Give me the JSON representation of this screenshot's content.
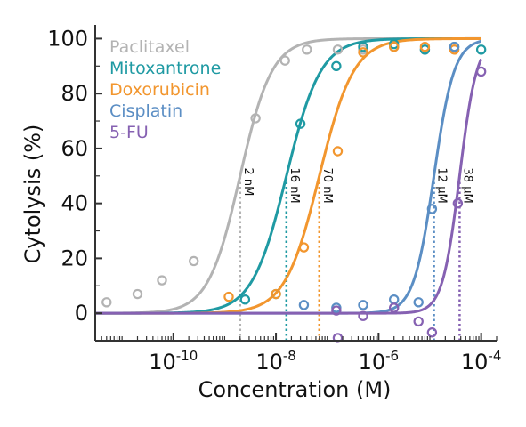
{
  "chart_data": {
    "type": "scatter",
    "title": "",
    "xlabel": "Concentration (M)",
    "ylabel": "Cytolysis (%)",
    "xscale": "log",
    "xlim": [
      3e-12,
      0.0002
    ],
    "ylim": [
      -10,
      105
    ],
    "x_ticks": [
      {
        "value": 1e-10,
        "base": "10",
        "exp": "-10"
      },
      {
        "value": 1e-08,
        "base": "10",
        "exp": "-8"
      },
      {
        "value": 1e-06,
        "base": "10",
        "exp": "-6"
      },
      {
        "value": 0.0001,
        "base": "10",
        "exp": "-4"
      }
    ],
    "y_ticks": [
      0,
      20,
      40,
      60,
      80,
      100
    ],
    "legend_position": "top-left",
    "series": [
      {
        "name": "Paclitaxel",
        "color": "#b3b3b3",
        "ic50": 2e-09,
        "ic50_label": "2 nM",
        "hill": 1.4,
        "top": 100,
        "points": [
          {
            "x": 5e-12,
            "y": 4
          },
          {
            "x": 2e-11,
            "y": 7
          },
          {
            "x": 6e-11,
            "y": 12
          },
          {
            "x": 2.5e-10,
            "y": 19
          },
          {
            "x": 4e-09,
            "y": 71
          },
          {
            "x": 1.5e-08,
            "y": 92
          },
          {
            "x": 4e-08,
            "y": 96
          },
          {
            "x": 1.6e-07,
            "y": 96
          },
          {
            "x": 5e-07,
            "y": 96
          },
          {
            "x": 2e-06,
            "y": 97
          },
          {
            "x": 8e-06,
            "y": 96
          },
          {
            "x": 3e-05,
            "y": 96
          }
        ]
      },
      {
        "name": "Mitoxantrone",
        "color": "#1f9aa3",
        "ic50": 1.6e-08,
        "ic50_label": "16 nM",
        "hill": 1.3,
        "top": 100,
        "points": [
          {
            "x": 2.5e-09,
            "y": 5
          },
          {
            "x": 1e-08,
            "y": 7
          },
          {
            "x": 3e-08,
            "y": 69
          },
          {
            "x": 1.5e-07,
            "y": 90
          },
          {
            "x": 5e-07,
            "y": 97
          },
          {
            "x": 2e-06,
            "y": 98
          },
          {
            "x": 8e-06,
            "y": 96
          },
          {
            "x": 3e-05,
            "y": 97
          },
          {
            "x": 0.0001,
            "y": 96
          }
        ]
      },
      {
        "name": "Doxorubicin",
        "color": "#f2962e",
        "ic50": 7e-08,
        "ic50_label": "70 nM",
        "hill": 1.3,
        "top": 100,
        "points": [
          {
            "x": 1.2e-09,
            "y": 6
          },
          {
            "x": 1e-08,
            "y": 7
          },
          {
            "x": 3.5e-08,
            "y": 24
          },
          {
            "x": 1.6e-07,
            "y": 59
          },
          {
            "x": 5e-07,
            "y": 95
          },
          {
            "x": 2e-06,
            "y": 97
          },
          {
            "x": 8e-06,
            "y": 97
          },
          {
            "x": 3e-05,
            "y": 96
          }
        ]
      },
      {
        "name": "Cisplatin",
        "color": "#5b8ec4",
        "ic50": 1.2e-05,
        "ic50_label": "12 μM",
        "hill": 2.2,
        "top": 100,
        "points": [
          {
            "x": 3.5e-08,
            "y": 3
          },
          {
            "x": 1.5e-07,
            "y": 2
          },
          {
            "x": 5e-07,
            "y": 3
          },
          {
            "x": 2e-06,
            "y": 5
          },
          {
            "x": 6e-06,
            "y": 4
          },
          {
            "x": 1.1e-05,
            "y": 38
          },
          {
            "x": 3e-05,
            "y": 97
          }
        ]
      },
      {
        "name": "5-FU",
        "color": "#8661b2",
        "ic50": 3.8e-05,
        "ic50_label": "38 μM",
        "hill": 2.6,
        "top": 100,
        "points": [
          {
            "x": 1.5e-07,
            "y": 1
          },
          {
            "x": 5e-07,
            "y": -1
          },
          {
            "x": 2e-06,
            "y": 2
          },
          {
            "x": 6e-06,
            "y": -3
          },
          {
            "x": 1.1e-05,
            "y": -7
          },
          {
            "x": 3.5e-05,
            "y": 40
          },
          {
            "x": 0.0001,
            "y": 88
          },
          {
            "x": 1.6e-07,
            "y": -9
          }
        ]
      }
    ]
  }
}
